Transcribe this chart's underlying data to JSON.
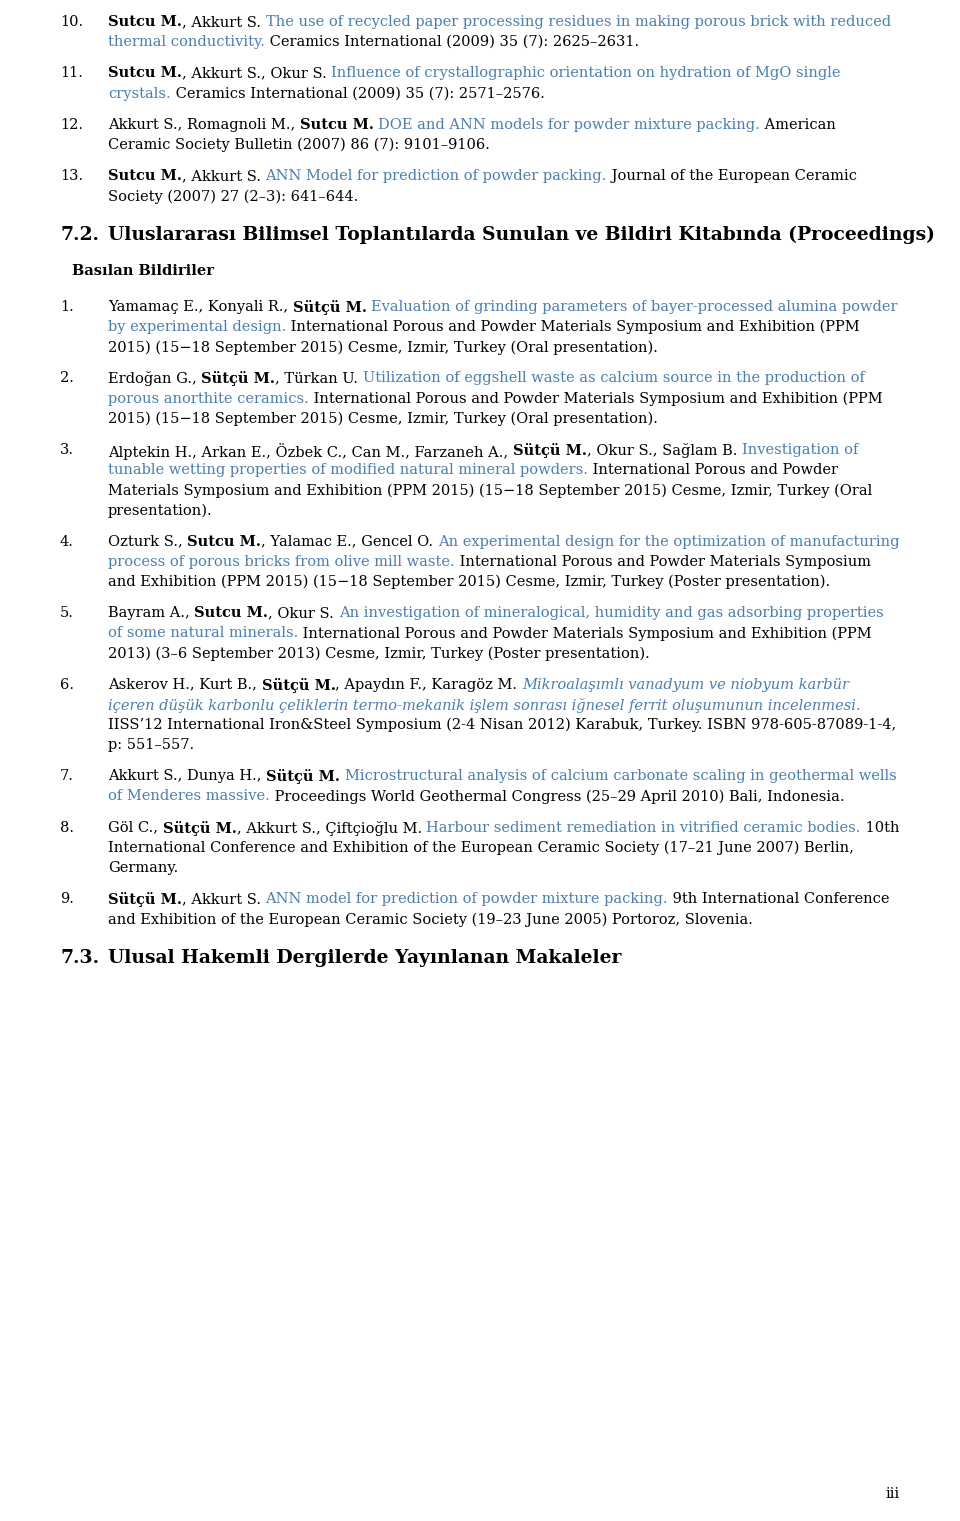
{
  "bg_color": "#ffffff",
  "page_num": "iii",
  "font_size": 10.5,
  "section_font_size": 13.5,
  "entries_top": [
    {
      "num": "10.",
      "parts": [
        {
          "text": "Sutcu M.",
          "bold": true,
          "italic": false,
          "color": "#000000"
        },
        {
          "text": ", Akkurt S. ",
          "bold": false,
          "italic": false,
          "color": "#000000"
        },
        {
          "text": "The use of recycled paper processing residues in making porous brick with reduced thermal conductivity.",
          "bold": false,
          "italic": false,
          "color": "#4a7fb5"
        },
        {
          "text": " Ceramics International (2009) 35 (7): 2625–2631.",
          "bold": false,
          "italic": false,
          "color": "#000000"
        }
      ]
    },
    {
      "num": "11.",
      "parts": [
        {
          "text": "Sutcu M.",
          "bold": true,
          "italic": false,
          "color": "#000000"
        },
        {
          "text": ", Akkurt S., Okur S. ",
          "bold": false,
          "italic": false,
          "color": "#000000"
        },
        {
          "text": "Influence of crystallographic orientation on hydration of MgO single crystals.",
          "bold": false,
          "italic": false,
          "color": "#4a7fb5"
        },
        {
          "text": " Ceramics International (2009) 35 (7): 2571–2576.",
          "bold": false,
          "italic": false,
          "color": "#000000"
        }
      ]
    },
    {
      "num": "12.",
      "parts": [
        {
          "text": "Akkurt S., Romagnoli M., ",
          "bold": false,
          "italic": false,
          "color": "#000000"
        },
        {
          "text": "Sutcu M.",
          "bold": true,
          "italic": false,
          "color": "#000000"
        },
        {
          "text": " ",
          "bold": false,
          "italic": false,
          "color": "#000000"
        },
        {
          "text": "DOE and ANN models for powder mixture packing.",
          "bold": false,
          "italic": false,
          "color": "#4a7fb5"
        },
        {
          "text": " American Ceramic Society Bulletin (2007) 86 (7): 9101–9106.",
          "bold": false,
          "italic": false,
          "color": "#000000"
        }
      ]
    },
    {
      "num": "13.",
      "parts": [
        {
          "text": "Sutcu M.",
          "bold": true,
          "italic": false,
          "color": "#000000"
        },
        {
          "text": ", Akkurt S. ",
          "bold": false,
          "italic": false,
          "color": "#000000"
        },
        {
          "text": "ANN Model for prediction of powder packing.",
          "bold": false,
          "italic": false,
          "color": "#4a7fb5"
        },
        {
          "text": " Journal of the European Ceramic Society (2007) 27 (2–3): 641–644.",
          "bold": false,
          "italic": false,
          "color": "#000000"
        }
      ]
    }
  ],
  "section_72_num": "7.2.",
  "section_72_title": "Uluslararası Bilimsel Toplantılarda Sunulan ve Bildiri Kitabında (Proceedings)",
  "subsection_72": "Basılan Bildiriler",
  "entries_72": [
    {
      "num": "1.",
      "parts": [
        {
          "text": "Yamamaç E., Konyali R., ",
          "bold": false,
          "italic": false,
          "color": "#000000"
        },
        {
          "text": "Sütçü M.",
          "bold": true,
          "italic": false,
          "color": "#000000"
        },
        {
          "text": " ",
          "bold": false,
          "italic": false,
          "color": "#000000"
        },
        {
          "text": "Evaluation of grinding parameters of bayer-processed alumina powder by experimental design.",
          "bold": false,
          "italic": false,
          "color": "#4a7fb5"
        },
        {
          "text": " International Porous and Powder Materials Symposium and Exhibition (PPM 2015) (15−18 September 2015) Cesme, Izmir, Turkey (Oral presentation).",
          "bold": false,
          "italic": false,
          "color": "#000000"
        }
      ]
    },
    {
      "num": "2.",
      "parts": [
        {
          "text": "Erdoğan G., ",
          "bold": false,
          "italic": false,
          "color": "#000000"
        },
        {
          "text": "Sütçü M.",
          "bold": true,
          "italic": false,
          "color": "#000000"
        },
        {
          "text": ", Türkan U. ",
          "bold": false,
          "italic": false,
          "color": "#000000"
        },
        {
          "text": "Utilization of eggshell waste as calcium source in the production of porous anorthite ceramics.",
          "bold": false,
          "italic": false,
          "color": "#4a7fb5"
        },
        {
          "text": " International Porous and Powder Materials Symposium and Exhibition (PPM 2015) (15−18 September 2015) Cesme, Izmir, Turkey (Oral presentation).",
          "bold": false,
          "italic": false,
          "color": "#000000"
        }
      ]
    },
    {
      "num": "3.",
      "parts": [
        {
          "text": "Alptekin H., Arkan E., Özbek C., Can M., Farzaneh A., ",
          "bold": false,
          "italic": false,
          "color": "#000000"
        },
        {
          "text": "Sütçü M.",
          "bold": true,
          "italic": false,
          "color": "#000000"
        },
        {
          "text": ", Okur S., Sağlam B. ",
          "bold": false,
          "italic": false,
          "color": "#000000"
        },
        {
          "text": "Investigation of tunable wetting properties of modified natural mineral powders.",
          "bold": false,
          "italic": false,
          "color": "#4a7fb5"
        },
        {
          "text": " International Porous and Powder Materials Symposium and Exhibition (PPM 2015) (15−18 September 2015) Cesme, Izmir, Turkey (Oral presentation).",
          "bold": false,
          "italic": false,
          "color": "#000000"
        }
      ]
    },
    {
      "num": "4.",
      "parts": [
        {
          "text": "Ozturk S., ",
          "bold": false,
          "italic": false,
          "color": "#000000"
        },
        {
          "text": "Sutcu M.",
          "bold": true,
          "italic": false,
          "color": "#000000"
        },
        {
          "text": ", Yalamac E., Gencel O. ",
          "bold": false,
          "italic": false,
          "color": "#000000"
        },
        {
          "text": "An experimental design for the optimization of manufacturing process of porous bricks from olive mill waste.",
          "bold": false,
          "italic": false,
          "color": "#4a7fb5"
        },
        {
          "text": " International Porous and Powder Materials Symposium and Exhibition (PPM 2015) (15−18 September 2015) Cesme, Izmir, Turkey (Poster presentation).",
          "bold": false,
          "italic": false,
          "color": "#000000"
        }
      ]
    },
    {
      "num": "5.",
      "parts": [
        {
          "text": "Bayram A., ",
          "bold": false,
          "italic": false,
          "color": "#000000"
        },
        {
          "text": "Sutcu M.",
          "bold": true,
          "italic": false,
          "color": "#000000"
        },
        {
          "text": ", Okur S. ",
          "bold": false,
          "italic": false,
          "color": "#000000"
        },
        {
          "text": "An investigation of mineralogical, humidity and gas adsorbing properties of some natural minerals.",
          "bold": false,
          "italic": false,
          "color": "#4a7fb5"
        },
        {
          "text": " International Porous and Powder Materials Symposium and Exhibition (PPM 2013) (3–6 September 2013) Cesme, Izmir, Turkey (Poster presentation).",
          "bold": false,
          "italic": false,
          "color": "#000000"
        }
      ]
    },
    {
      "num": "6.",
      "parts": [
        {
          "text": "Askerov H., Kurt B., ",
          "bold": false,
          "italic": false,
          "color": "#000000"
        },
        {
          "text": "Sütçü M.",
          "bold": true,
          "italic": false,
          "color": "#000000"
        },
        {
          "text": ", Apaydın F., Karagöz M. ",
          "bold": false,
          "italic": false,
          "color": "#000000"
        },
        {
          "text": "Mikroalaşımlı vanadyum ve niobyum karbür içeren düşük karbonlu çeliklerin termo-mekanik işlem sonrası iğnesel ferrit oluşumunun incelenmesi.",
          "bold": false,
          "italic": true,
          "color": "#4a7fb5"
        },
        {
          "text": " IISS’12 International Iron&Steel Symposium (2-4 Nisan 2012) Karabuk, Turkey. ISBN 978-605-87089-1-4, p: 551–557.",
          "bold": false,
          "italic": false,
          "color": "#000000"
        }
      ]
    },
    {
      "num": "7.",
      "parts": [
        {
          "text": "Akkurt S., Dunya H., ",
          "bold": false,
          "italic": false,
          "color": "#000000"
        },
        {
          "text": "Sütçü M.",
          "bold": true,
          "italic": false,
          "color": "#000000"
        },
        {
          "text": " ",
          "bold": false,
          "italic": false,
          "color": "#000000"
        },
        {
          "text": "Microstructural analysis of calcium carbonate scaling in geothermal wells of Menderes massive.",
          "bold": false,
          "italic": false,
          "color": "#4a7fb5"
        },
        {
          "text": " Proceedings World Geothermal Congress (25–29 April 2010) Bali, Indonesia.",
          "bold": false,
          "italic": false,
          "color": "#000000"
        }
      ]
    },
    {
      "num": "8.",
      "parts": [
        {
          "text": "Göl C., ",
          "bold": false,
          "italic": false,
          "color": "#000000"
        },
        {
          "text": "Sütçü M.",
          "bold": true,
          "italic": false,
          "color": "#000000"
        },
        {
          "text": ", Akkurt S., Çiftçioğlu M. ",
          "bold": false,
          "italic": false,
          "color": "#000000"
        },
        {
          "text": "Harbour sediment remediation in vitrified ceramic bodies.",
          "bold": false,
          "italic": false,
          "color": "#4a7fb5"
        },
        {
          "text": " 10th International Conference and Exhibition of the European Ceramic Society (17–21 June 2007) Berlin, Germany.",
          "bold": false,
          "italic": false,
          "color": "#000000"
        }
      ]
    },
    {
      "num": "9.",
      "parts": [
        {
          "text": "Sütçü M.",
          "bold": true,
          "italic": false,
          "color": "#000000"
        },
        {
          "text": ", Akkurt S. ",
          "bold": false,
          "italic": false,
          "color": "#000000"
        },
        {
          "text": "ANN model for prediction of powder mixture packing.",
          "bold": false,
          "italic": false,
          "color": "#4a7fb5"
        },
        {
          "text": " 9th International Conference and Exhibition of the European Ceramic Society (19–23 June 2005) Portoroz, Slovenia.",
          "bold": false,
          "italic": false,
          "color": "#000000"
        }
      ]
    }
  ],
  "section_73_num": "7.3.",
  "section_73_title": "Ulusal Hakemli Dergilerde Yayınlanan Makaleler"
}
